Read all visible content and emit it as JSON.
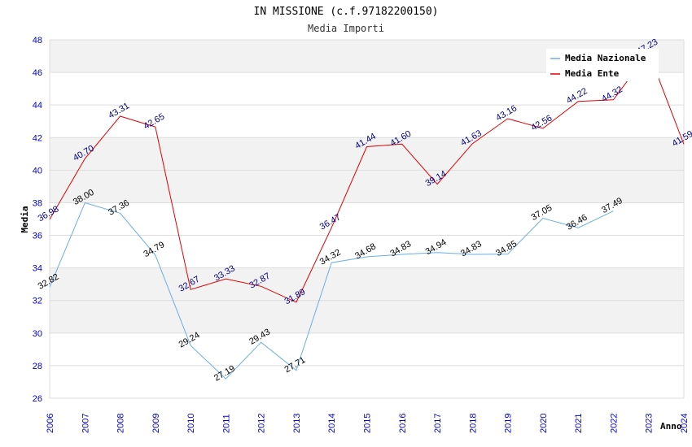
{
  "chart_data": {
    "type": "line",
    "title": "IN MISSIONE (c.f.97182200150)",
    "subtitle": "Media Importi",
    "xlabel": "Anno",
    "ylabel": "Media",
    "ylim": [
      26,
      48
    ],
    "yticks": [
      "26",
      "28",
      "30",
      "32",
      "34",
      "36",
      "38",
      "40",
      "42",
      "44",
      "46",
      "48"
    ],
    "x": [
      "2006",
      "2007",
      "2008",
      "2009",
      "2010",
      "2011",
      "2012",
      "2013",
      "2014",
      "2015",
      "2016",
      "2017",
      "2018",
      "2019",
      "2020",
      "2021",
      "2022",
      "2023",
      "2024"
    ],
    "grid": "horizontal alternating bands",
    "legend_position": "top-right",
    "series": [
      {
        "name": "Media Nazionale",
        "color": "#6aaee8",
        "values": [
          32.82,
          38.0,
          37.36,
          34.79,
          29.24,
          27.19,
          29.43,
          27.71,
          34.32,
          34.68,
          34.83,
          34.94,
          34.83,
          34.85,
          37.05,
          36.46,
          37.49,
          null,
          null
        ],
        "labels": [
          "32.82",
          "38.00",
          "37.36",
          "34.79",
          "29.24",
          "27.19",
          "29.43",
          "27.71",
          "34.32",
          "34.68",
          "34.83",
          "34.94",
          "34.83",
          "34.85",
          "37.05",
          "36.46",
          "37.49",
          null,
          null
        ]
      },
      {
        "name": "Media Ente",
        "color": "#e00000",
        "values": [
          36.98,
          40.7,
          43.31,
          42.65,
          32.67,
          33.33,
          32.87,
          31.89,
          36.47,
          41.44,
          41.6,
          39.14,
          41.63,
          43.16,
          42.56,
          44.22,
          44.32,
          47.23,
          41.59
        ],
        "labels": [
          "36.98",
          "40.70",
          "43.31",
          "42.65",
          "32.67",
          "33.33",
          "32.87",
          "31.89",
          "36.47",
          "41.44",
          "41.60",
          "39.14",
          "41.63",
          "43.16",
          "42.56",
          "44.22",
          "44.32",
          "47.23",
          "41.59"
        ]
      }
    ]
  }
}
